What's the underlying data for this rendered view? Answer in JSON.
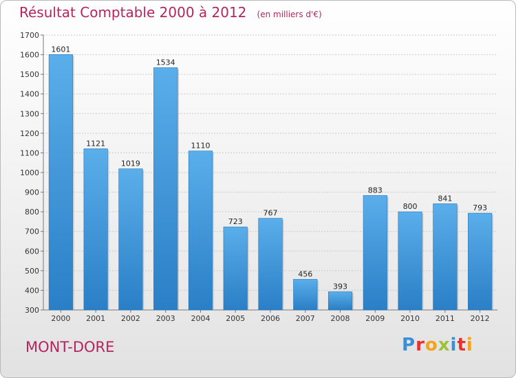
{
  "chart_data": {
    "type": "bar",
    "title": "Résultat Comptable 2000 à 2012",
    "subtitle": "(en milliers d'€)",
    "categories": [
      "2000",
      "2001",
      "2002",
      "2003",
      "2004",
      "2005",
      "2006",
      "2007",
      "2008",
      "2009",
      "2010",
      "2011",
      "2012"
    ],
    "values": [
      1601,
      1121,
      1019,
      1534,
      1110,
      723,
      767,
      456,
      393,
      883,
      800,
      841,
      793
    ],
    "ylim": [
      300,
      1700
    ],
    "yticks": [
      300,
      400,
      500,
      600,
      700,
      800,
      900,
      1000,
      1100,
      1200,
      1300,
      1400,
      1500,
      1600,
      1700
    ],
    "grid": true,
    "bar_color": "#3a8fd6"
  },
  "footer": {
    "commune": "MONT-DORE",
    "logo": "Proxiti",
    "logo_colors": [
      "#3a8fd6",
      "#e8312f",
      "#f7a21b",
      "#9ec23a",
      "#3a8fd6",
      "#e8312f",
      "#f7a21b"
    ]
  },
  "colors": {
    "title": "#b5245c"
  }
}
